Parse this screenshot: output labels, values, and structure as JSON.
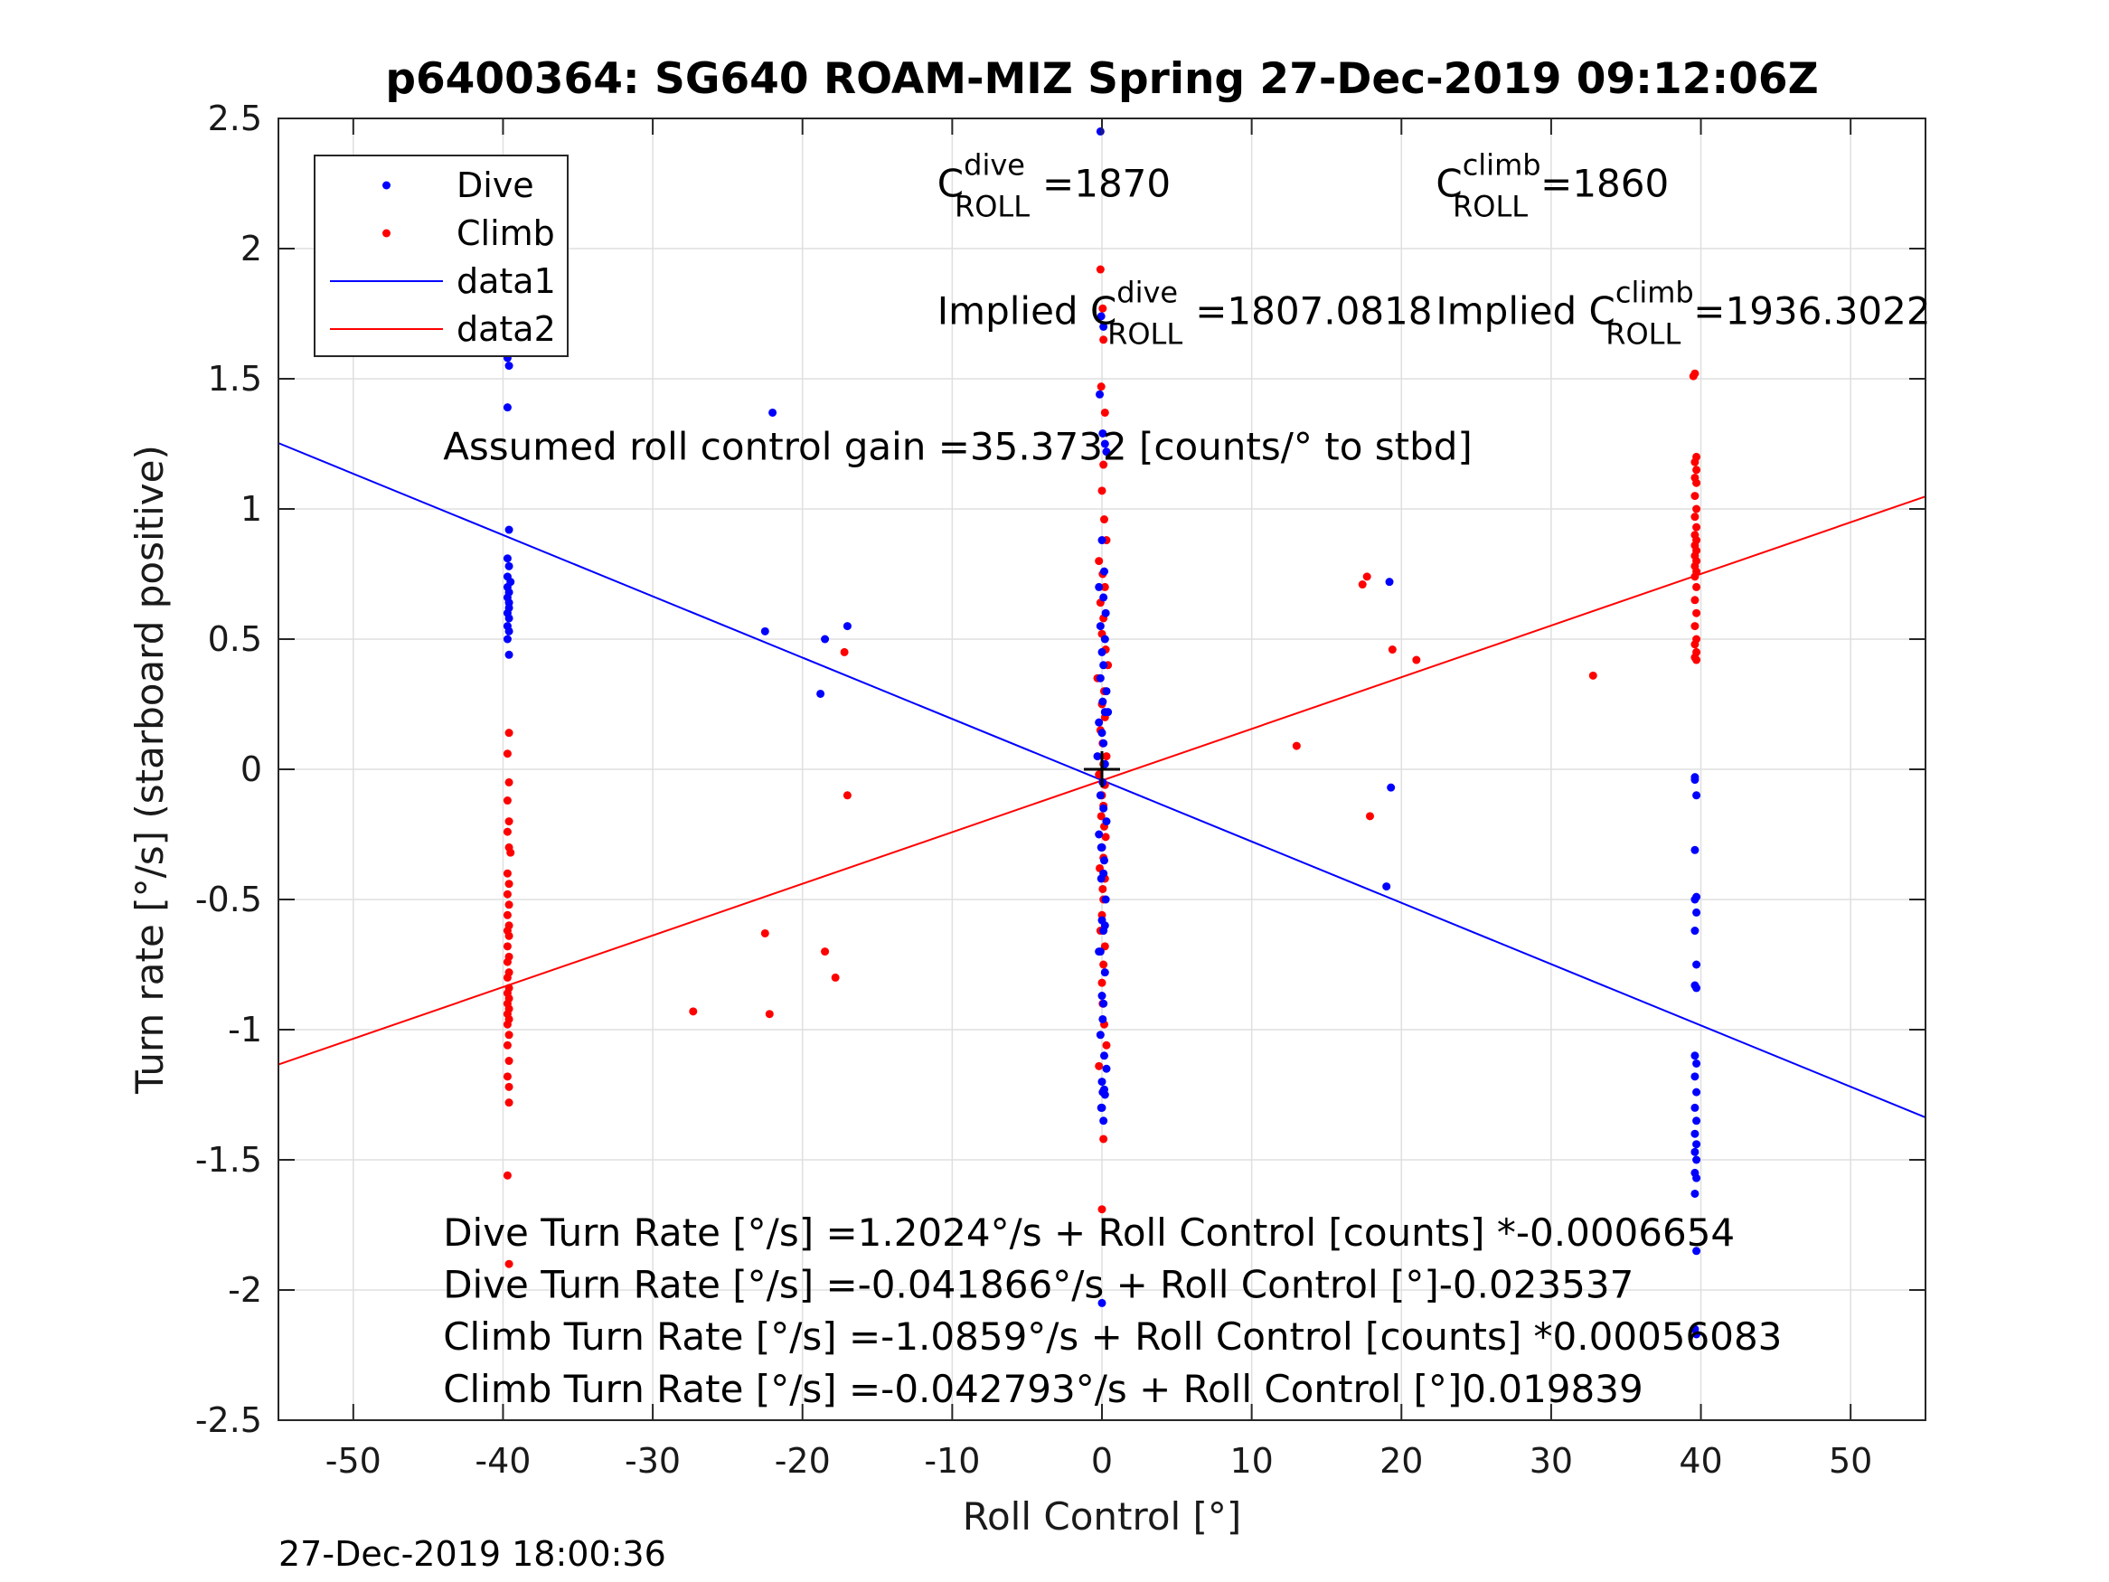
{
  "chart_data": {
    "type": "scatter",
    "title": "p6400364: SG640 ROAM-MIZ Spring 27-Dec-2019 09:12:06Z",
    "xlabel": "Roll Control [°]",
    "ylabel": "Turn rate [°/s] (starboard positive)",
    "xlim": [
      -55,
      55
    ],
    "ylim": [
      -2.5,
      2.5
    ],
    "xticks": [
      -50,
      -40,
      -30,
      -20,
      -10,
      0,
      10,
      20,
      30,
      40,
      50
    ],
    "yticks": [
      -2.5,
      -2,
      -1.5,
      -1,
      -0.5,
      0,
      0.5,
      1,
      1.5,
      2,
      2.5
    ],
    "xtick_labels": [
      "-50",
      "-40",
      "-30",
      "-20",
      "-10",
      "0",
      "10",
      "20",
      "30",
      "40",
      "50"
    ],
    "ytick_labels": [
      "-2.5",
      "-2",
      "-1.5",
      "-1",
      "-0.5",
      "0",
      "0.5",
      "1",
      "1.5",
      "2",
      "2.5"
    ],
    "grid": true,
    "legend_position": "top-left",
    "legend": [
      {
        "label": "Dive",
        "kind": "marker",
        "color": "#0000ff"
      },
      {
        "label": "Climb",
        "kind": "marker",
        "color": "#ff0000"
      },
      {
        "label": "data1",
        "kind": "line",
        "color": "#0000ff"
      },
      {
        "label": "data2",
        "kind": "line",
        "color": "#ff0000"
      }
    ],
    "series": [
      {
        "name": "Dive",
        "color": "#0000ff",
        "x": [
          -39.7,
          -39.6,
          -39.7,
          -39.6,
          -39.7,
          -39.6,
          -39.7,
          -39.6,
          -39.7,
          -39.5,
          -39.7,
          -39.6,
          -39.7,
          -39.6,
          -39.6,
          -39.7,
          -39.6,
          -39.7,
          -39.6,
          -39.7,
          -39.6,
          -22.5,
          -22,
          -18.8,
          -18.5,
          -17,
          -0.1,
          -0.05,
          0.1,
          0.2,
          -0.15,
          0.05,
          0.3,
          0,
          0.15,
          -0.2,
          0.1,
          0.25,
          -0.1,
          0.2,
          0,
          0.1,
          -0.1,
          0.3,
          0.05,
          0.2,
          -0.2,
          0,
          0.1,
          0.4,
          -0.3,
          0.2,
          0.05,
          -0.1,
          0.1,
          0.3,
          -0.2,
          0,
          0.15,
          -0.05,
          0.25,
          0,
          0.1,
          -0.2,
          0.2,
          0,
          0.1,
          0.05,
          -0.1,
          0.15,
          0,
          0.2,
          -0.05,
          0.1,
          0,
          0.3,
          0.05,
          0.15,
          -0.1,
          0.2,
          0.1,
          -0.05,
          0,
          19.2,
          19.3,
          19,
          39.6,
          39.7,
          39.6,
          39.7,
          39.6,
          39.7,
          39.6,
          39.7,
          39.6,
          39.7,
          39.6,
          39.7,
          39.6,
          39.7,
          39.6,
          39.7,
          39.6,
          39.7,
          39.6,
          39.7,
          39.6,
          39.7,
          39.6,
          39.7,
          39.6,
          39.7,
          39.6
        ],
        "y": [
          1.92,
          1.6,
          1.58,
          1.55,
          1.39,
          0.92,
          0.81,
          0.78,
          0.74,
          0.72,
          0.7,
          0.68,
          0.66,
          0.64,
          0.62,
          0.6,
          0.58,
          0.55,
          0.53,
          0.5,
          0.44,
          0.53,
          1.37,
          0.29,
          0.5,
          0.55,
          2.45,
          1.74,
          1.7,
          1.25,
          1.44,
          1.29,
          1.22,
          0.88,
          0.76,
          0.7,
          0.66,
          0.6,
          0.55,
          0.5,
          0.45,
          0.4,
          0.35,
          0.3,
          0.26,
          0.22,
          0.18,
          0.14,
          0.1,
          0.22,
          0.05,
          0.02,
          -0.05,
          -0.1,
          -0.15,
          -0.2,
          -0.25,
          -0.3,
          -0.35,
          -0.42,
          -0.5,
          -0.58,
          -0.62,
          -0.7,
          -0.78,
          -0.87,
          -0.9,
          -0.96,
          -1.02,
          -1.1,
          -1.2,
          -1.25,
          -1.3,
          -1.35,
          -1.3,
          -1.15,
          -1.24,
          -1.23,
          -0.7,
          -0.6,
          -0.4,
          -0.3,
          -2.05,
          0.72,
          -0.07,
          -0.45,
          -0.04,
          -0.1,
          -0.31,
          -0.49,
          -0.5,
          -0.55,
          -0.62,
          -0.75,
          -0.83,
          -0.84,
          -1.1,
          -1.13,
          -1.18,
          -1.24,
          -1.3,
          -1.35,
          -1.4,
          -1.44,
          -1.47,
          -1.5,
          -1.55,
          -1.57,
          -1.63,
          -1.85,
          -2.15,
          -2.17,
          -0.03
        ],
        "fit_line": {
          "label": "data1",
          "x": [
            -55,
            55
          ],
          "y": [
            1.253,
            -1.337
          ]
        }
      },
      {
        "name": "Climb",
        "color": "#ff0000",
        "x": [
          -39.6,
          -39.7,
          -39.6,
          -39.7,
          -39.6,
          -39.7,
          -39.6,
          -39.5,
          -39.7,
          -39.6,
          -39.7,
          -39.6,
          -39.7,
          -39.6,
          -39.7,
          -39.6,
          -39.7,
          -39.6,
          -39.7,
          -39.6,
          -39.7,
          -39.6,
          -39.7,
          -39.6,
          -39.7,
          -39.6,
          -39.7,
          -39.6,
          -39.7,
          -39.6,
          -39.7,
          -39.6,
          -39.7,
          -39.6,
          -39.6,
          -39.7,
          -39.6,
          -27.3,
          -22.5,
          -22.2,
          -18.5,
          -17.8,
          -17,
          -17.2,
          -0.1,
          0.05,
          0.1,
          -0.05,
          0.2,
          0.1,
          0,
          0.15,
          0.3,
          -0.2,
          0.05,
          0.2,
          -0.1,
          0.1,
          0,
          0.25,
          0.4,
          -0.3,
          0.15,
          0,
          0.2,
          -0.1,
          0.05,
          0.3,
          0.1,
          -0.2,
          0.2,
          0,
          0.1,
          -0.05,
          0.15,
          0.25,
          0,
          0.1,
          -0.15,
          0.2,
          0.05,
          0.1,
          0,
          -0.1,
          0.2,
          0.1,
          0,
          0.05,
          0.15,
          0.3,
          -0.2,
          0.1,
          0,
          13,
          17.4,
          17.7,
          17.9,
          19.4,
          21,
          32.8,
          39.5,
          39.6,
          39.7,
          39.6,
          39.7,
          39.6,
          39.7,
          39.6,
          39.7,
          39.6,
          39.7,
          39.6,
          39.7,
          39.6,
          39.7,
          39.6,
          39.7,
          39.6,
          39.7,
          39.6,
          39.7,
          39.6,
          39.7,
          39.6,
          39.7,
          39.6,
          39.7,
          39.6,
          39.7
        ],
        "y": [
          0.14,
          0.06,
          -0.05,
          -0.12,
          -0.2,
          -0.24,
          -0.3,
          -0.32,
          -0.4,
          -0.44,
          -0.48,
          -0.52,
          -0.56,
          -0.6,
          -0.62,
          -0.64,
          -0.68,
          -0.72,
          -0.74,
          -0.78,
          -0.8,
          -0.84,
          -0.86,
          -0.88,
          -0.9,
          -0.92,
          -0.94,
          -0.96,
          -0.98,
          -1.02,
          -1.06,
          -1.12,
          -1.18,
          -1.22,
          -1.28,
          -1.56,
          -1.9,
          -0.93,
          -0.63,
          -0.94,
          -0.7,
          -0.8,
          -0.1,
          0.45,
          1.92,
          1.77,
          1.65,
          1.47,
          1.37,
          1.17,
          1.07,
          0.96,
          0.88,
          0.8,
          0.75,
          0.7,
          0.64,
          0.58,
          0.52,
          0.46,
          0.4,
          0.35,
          0.3,
          0.25,
          0.2,
          0.15,
          0.1,
          0.05,
          0.02,
          -0.02,
          -0.06,
          -0.1,
          -0.14,
          -0.18,
          -0.22,
          -0.26,
          -0.3,
          -0.34,
          -0.38,
          -0.42,
          -0.46,
          -0.5,
          -0.56,
          -0.62,
          -0.68,
          -0.75,
          -0.82,
          -0.9,
          -0.98,
          -1.06,
          -1.14,
          -1.42,
          -1.69,
          0.09,
          0.71,
          0.74,
          -0.18,
          0.46,
          0.42,
          0.36,
          1.51,
          1.52,
          1.2,
          1.18,
          1.15,
          1.12,
          1.1,
          1.05,
          1.0,
          0.97,
          0.93,
          0.9,
          0.88,
          0.86,
          0.84,
          0.82,
          0.8,
          0.78,
          0.76,
          0.74,
          0.7,
          0.65,
          0.6,
          0.55,
          0.5,
          0.48,
          0.45,
          0.43,
          0.42
        ],
        "fit_line": {
          "label": "data2",
          "x": [
            -55,
            55
          ],
          "y": [
            -1.134,
            1.048
          ]
        }
      }
    ],
    "center_marker": {
      "x": 0,
      "y": 0,
      "color": "#000000"
    },
    "annotations": {
      "c_roll_dive": {
        "prefix": "C",
        "sup": "dive",
        "sub": "ROLL",
        "value": "=1870",
        "x": -11,
        "y": 2.2
      },
      "c_roll_climb": {
        "prefix": "C",
        "sup": "climb",
        "sub": "ROLL",
        "value": "=1860",
        "x": 22.3,
        "y": 2.2
      },
      "implied_dive": {
        "prefix": "Implied C",
        "sup": "dive",
        "sub": "ROLL",
        "value": "=1807.0818",
        "x": -11,
        "y": 1.71
      },
      "implied_climb": {
        "prefix": "Implied C",
        "sup": "climb",
        "sub": "ROLL",
        "value": "=1936.3022",
        "x": 22.3,
        "y": 1.71
      },
      "gain": {
        "text": "Assumed roll control gain =35.3732 [counts/° to stbd]",
        "x": -44,
        "y": 1.19
      },
      "equations": [
        {
          "text": "Dive Turn Rate [°/s] =1.2024°/s + Roll Control [counts] *-0.0006654",
          "x": -44,
          "y": -1.83
        },
        {
          "text": "Dive Turn Rate [°/s] =-0.041866°/s + Roll Control [°]-0.023537",
          "x": -44,
          "y": -2.03
        },
        {
          "text": "Climb Turn Rate [°/s] =-1.0859°/s + Roll Control [counts] *0.00056083",
          "x": -44,
          "y": -2.23
        },
        {
          "text": "Climb Turn Rate [°/s] =-0.042793°/s + Roll Control [°]0.019839",
          "x": -44,
          "y": -2.43
        }
      ]
    },
    "timestamp": "27-Dec-2019 18:00:36"
  }
}
